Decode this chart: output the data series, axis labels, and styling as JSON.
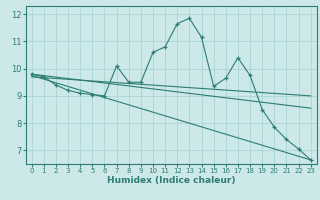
{
  "title": "",
  "xlabel": "Humidex (Indice chaleur)",
  "ylabel": "",
  "bg_color": "#cce8e8",
  "line_color": "#2d7d72",
  "grid_color": "#aad4d4",
  "xlim": [
    -0.5,
    23.5
  ],
  "ylim": [
    6.5,
    12.3
  ],
  "yticks": [
    7,
    8,
    9,
    10,
    11,
    12
  ],
  "xticks": [
    0,
    1,
    2,
    3,
    4,
    5,
    6,
    7,
    8,
    9,
    10,
    11,
    12,
    13,
    14,
    15,
    16,
    17,
    18,
    19,
    20,
    21,
    22,
    23
  ],
  "main_x": [
    0,
    1,
    2,
    3,
    4,
    5,
    6,
    7,
    8,
    9,
    10,
    11,
    12,
    13,
    14,
    15,
    16,
    17,
    18,
    19,
    20,
    21,
    22,
    23
  ],
  "main_y": [
    9.8,
    9.7,
    9.4,
    9.2,
    9.1,
    9.05,
    9.0,
    10.1,
    9.5,
    9.5,
    10.6,
    10.8,
    11.65,
    11.85,
    11.15,
    9.35,
    9.65,
    10.4,
    9.75,
    8.5,
    7.85,
    7.4,
    7.05,
    6.65
  ],
  "trend1_x": [
    0,
    23
  ],
  "trend1_y": [
    9.8,
    8.55
  ],
  "trend2_x": [
    0,
    23
  ],
  "trend2_y": [
    9.75,
    6.65
  ],
  "trend3_x": [
    0,
    23
  ],
  "trend3_y": [
    9.7,
    9.0
  ]
}
